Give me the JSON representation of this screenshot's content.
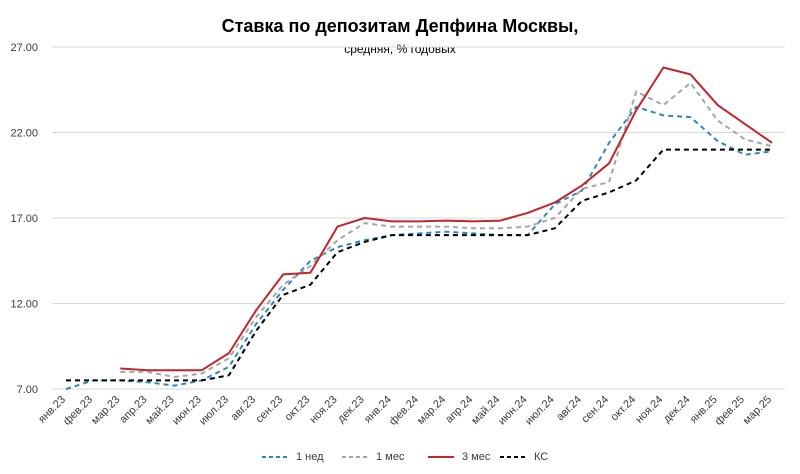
{
  "chart_data": {
    "type": "line",
    "title": "Ставка по депозитам Депфина Москвы,",
    "subtitle": "средняя, % годовых",
    "xlabel": "",
    "ylabel": "",
    "ylim": [
      7.0,
      27.0
    ],
    "yticks": [
      "7.00",
      "12.00",
      "17.00",
      "22.00",
      "27.00"
    ],
    "grid": true,
    "legend_position": "bottom",
    "categories": [
      "янв.23",
      "фев.23",
      "мар.23",
      "апр.23",
      "май.23",
      "июн.23",
      "июл.23",
      "авг.23",
      "сен.23",
      "окт.23",
      "ноя.23",
      "дек.23",
      "янв.24",
      "фев.24",
      "мар.24",
      "апр.24",
      "май.24",
      "июн.24",
      "июл.24",
      "авг.24",
      "сен.24",
      "окт.24",
      "ноя.24",
      "дек.24",
      "янв.25",
      "фев.25",
      "мар.25"
    ],
    "series": [
      {
        "name": "1 нед",
        "color": "#2e86c1",
        "dash": "dashed",
        "values": [
          7.0,
          7.5,
          7.5,
          7.4,
          7.2,
          7.5,
          8.3,
          10.8,
          12.8,
          14.5,
          15.3,
          15.7,
          16.0,
          16.1,
          16.2,
          16.1,
          16.0,
          16.0,
          17.8,
          18.6,
          21.4,
          23.5,
          23.0,
          22.9,
          21.5,
          20.7,
          20.9
        ]
      },
      {
        "name": "1 мес",
        "color": "#a6a6a6",
        "dash": "dashed",
        "values": [
          null,
          null,
          8.0,
          8.0,
          7.7,
          7.9,
          8.8,
          11.2,
          13.1,
          14.2,
          15.7,
          16.7,
          16.5,
          16.5,
          16.5,
          16.4,
          16.4,
          16.5,
          17.0,
          18.7,
          19.1,
          24.4,
          23.6,
          24.9,
          22.7,
          21.6,
          21.2
        ]
      },
      {
        "name": "3 мес",
        "color": "#c0272d",
        "dash": "solid",
        "values": [
          null,
          null,
          8.2,
          8.1,
          8.1,
          8.1,
          9.1,
          11.6,
          13.7,
          13.8,
          16.5,
          17.0,
          16.8,
          16.8,
          16.85,
          16.8,
          16.85,
          17.3,
          17.9,
          18.9,
          20.2,
          23.3,
          25.8,
          25.4,
          23.6,
          22.5,
          21.4
        ]
      },
      {
        "name": "КС",
        "color": "#000000",
        "dash": "dashed",
        "values": [
          7.5,
          7.5,
          7.5,
          7.5,
          7.5,
          7.5,
          7.8,
          10.4,
          12.5,
          13.1,
          15.0,
          15.6,
          16.0,
          16.0,
          16.0,
          16.0,
          16.0,
          16.0,
          16.4,
          18.0,
          18.5,
          19.2,
          21.0,
          21.0,
          21.0,
          21.0,
          21.0
        ]
      }
    ]
  }
}
